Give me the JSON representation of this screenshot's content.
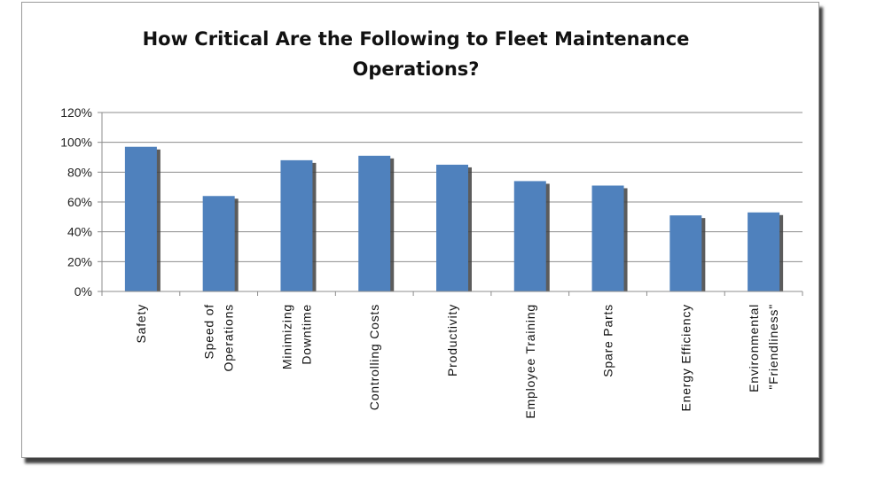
{
  "chart_data": {
    "type": "bar",
    "title": "How Critical Are the Following to Fleet Maintenance Operations?",
    "title_lines": [
      "How Critical Are the Following to Fleet Maintenance",
      "Operations?"
    ],
    "categories": [
      [
        "Safety"
      ],
      [
        "Speed of",
        "Operations"
      ],
      [
        "Minimizing",
        "Downtime"
      ],
      [
        "Controlling Costs"
      ],
      [
        "Productivity"
      ],
      [
        "Employee Training"
      ],
      [
        "Spare Parts"
      ],
      [
        "Energy Efficiency"
      ],
      [
        "Environmental",
        "\"Friendliness\""
      ]
    ],
    "values": [
      97,
      64,
      88,
      91,
      85,
      74,
      71,
      51,
      53
    ],
    "ylim": [
      0,
      120
    ],
    "yticks": [
      "0%",
      "20%",
      "40%",
      "60%",
      "80%",
      "100%",
      "120%"
    ],
    "ytick_values": [
      0,
      20,
      40,
      60,
      80,
      100,
      120
    ],
    "xlabel": "",
    "ylabel": "",
    "grid": true,
    "colors": {
      "bar": "#4f81bd",
      "grid": "#8c8c8c"
    }
  }
}
